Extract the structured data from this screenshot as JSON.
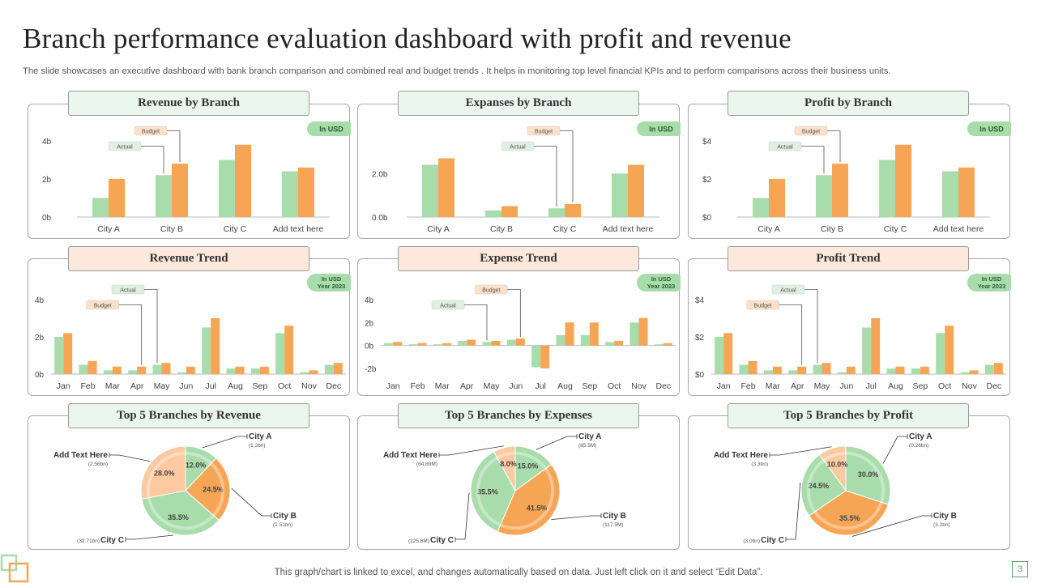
{
  "title": "Branch performance evaluation dashboard with profit and revenue",
  "subtitle": "The slide showcases an executive dashboard with bank branch comparison and combined real and budget trends . It helps in monitoring top level financial KPIs and to perform comparisons across their business units.",
  "footer": "This graph/chart is linked to excel,  and changes automatically based on data. Just left click on it and select “Edit Data”.",
  "page_number": "3",
  "colors": {
    "actual": "#a8dcab",
    "budget": "#f6a555",
    "green_title": "#eaf5ee",
    "orange_title": "#fde9dc",
    "badge": "#a8dcab"
  },
  "chart_data": [
    {
      "id": "rev_branch",
      "type": "bar",
      "title": "Revenue by Branch",
      "badge": [
        "In USD"
      ],
      "categories": [
        "City A",
        "City B",
        "City C",
        "Add text here"
      ],
      "series": [
        {
          "name": "Actual",
          "values": [
            1.0,
            2.2,
            3.0,
            2.4
          ]
        },
        {
          "name": "Budget",
          "values": [
            2.0,
            2.8,
            3.8,
            2.6
          ]
        }
      ],
      "ylim": [
        0,
        4
      ],
      "yticks": [
        0,
        2,
        4
      ],
      "ytick_labels": [
        "0b",
        "2b",
        "4b"
      ],
      "callouts": [
        {
          "text": "Budget",
          "series": 1,
          "index": 1
        },
        {
          "text": "Actual",
          "series": 0,
          "index": 1
        }
      ]
    },
    {
      "id": "exp_branch",
      "type": "bar",
      "title": "Expanses by Branch",
      "badge": [
        "In USD"
      ],
      "categories": [
        "City A",
        "City B",
        "City C",
        "Add text here"
      ],
      "series": [
        {
          "name": "Actual",
          "values": [
            2.4,
            0.3,
            0.4,
            2.0
          ]
        },
        {
          "name": "Budget",
          "values": [
            2.7,
            0.5,
            0.6,
            2.4
          ]
        }
      ],
      "ylim": [
        0,
        3.5
      ],
      "yticks": [
        0,
        2
      ],
      "ytick_labels": [
        "0.0b",
        "2.0b"
      ],
      "callouts": [
        {
          "text": "Budget",
          "series": 1,
          "index": 2
        },
        {
          "text": "Actual",
          "series": 0,
          "index": 2
        }
      ]
    },
    {
      "id": "profit_branch",
      "type": "bar",
      "title": "Profit  by Branch",
      "badge": [
        "In USD"
      ],
      "categories": [
        "City A",
        "City B",
        "City C",
        "Add text here"
      ],
      "series": [
        {
          "name": "Actual",
          "values": [
            1.0,
            2.2,
            3.0,
            2.4
          ]
        },
        {
          "name": "Budget",
          "values": [
            2.0,
            2.8,
            3.8,
            2.6
          ]
        }
      ],
      "ylim": [
        0,
        4
      ],
      "yticks": [
        0,
        2,
        4
      ],
      "ytick_labels": [
        "$0",
        "$2",
        "$4"
      ],
      "callouts": [
        {
          "text": "Budget",
          "series": 1,
          "index": 1
        },
        {
          "text": "Actual",
          "series": 0,
          "index": 1
        }
      ]
    },
    {
      "id": "rev_trend",
      "type": "bar",
      "title": "Revenue Trend",
      "badge": [
        "In USD",
        "Year 2023"
      ],
      "categories": [
        "Jan",
        "Feb",
        "Mar",
        "Apr",
        "May",
        "Jun",
        "Jul",
        "Aug",
        "Sep",
        "Oct",
        "Nov",
        "Dec"
      ],
      "series": [
        {
          "name": "Actual",
          "values": [
            2.0,
            0.5,
            0.2,
            0.2,
            0.5,
            0.1,
            2.5,
            0.3,
            0.3,
            2.2,
            0.1,
            0.5
          ]
        },
        {
          "name": "Budget",
          "values": [
            2.2,
            0.7,
            0.4,
            0.4,
            0.6,
            0.4,
            3.0,
            0.4,
            0.4,
            2.6,
            0.2,
            0.6
          ]
        }
      ],
      "ylim": [
        0,
        4
      ],
      "yticks": [
        0,
        2,
        4
      ],
      "ytick_labels": [
        "0b",
        "2b",
        "4b"
      ],
      "callouts": [
        {
          "text": "Actual",
          "series": 0,
          "index": 4
        },
        {
          "text": "Budget",
          "series": 1,
          "index": 3
        }
      ]
    },
    {
      "id": "exp_trend",
      "type": "bar",
      "title": "Expense Trend",
      "badge": [
        "In USD",
        "Year 2023"
      ],
      "categories": [
        "Jan",
        "Feb",
        "Mar",
        "Apr",
        "May",
        "Jun",
        "Jul",
        "Aug",
        "Sep",
        "Oct",
        "Nov",
        "Dec"
      ],
      "series": [
        {
          "name": "Actual",
          "values": [
            0.2,
            0.1,
            0.1,
            0.4,
            0.3,
            0.5,
            -1.9,
            0.9,
            0.9,
            0.3,
            2.0,
            0.1
          ]
        },
        {
          "name": "Budget",
          "values": [
            0.3,
            0.2,
            0.2,
            0.5,
            0.4,
            0.6,
            -2.0,
            2.0,
            2.0,
            0.4,
            2.4,
            0.2
          ]
        }
      ],
      "ylim": [
        -2.5,
        4
      ],
      "yticks": [
        -2,
        0,
        2,
        4
      ],
      "ytick_labels": [
        "-2b",
        "0b",
        "2b",
        "4b"
      ],
      "callouts": [
        {
          "text": "Budget",
          "series": 1,
          "index": 5
        },
        {
          "text": "Actual",
          "series": 0,
          "index": 4
        }
      ]
    },
    {
      "id": "profit_trend",
      "type": "bar",
      "title": "Profit  Trend",
      "badge": [
        "In USD",
        "Year 2023"
      ],
      "categories": [
        "Jan",
        "Feb",
        "Mar",
        "Apr",
        "May",
        "Jun",
        "Jul",
        "Aug",
        "Sep",
        "Oct",
        "Nov",
        "Dec"
      ],
      "series": [
        {
          "name": "Actual",
          "values": [
            2.0,
            0.5,
            0.2,
            0.2,
            0.5,
            0.1,
            2.5,
            0.3,
            0.3,
            2.2,
            0.1,
            0.5
          ]
        },
        {
          "name": "Budget",
          "values": [
            2.2,
            0.7,
            0.4,
            0.4,
            0.6,
            0.4,
            3.0,
            0.4,
            0.4,
            2.6,
            0.2,
            0.6
          ]
        }
      ],
      "ylim": [
        0,
        4
      ],
      "yticks": [
        0,
        2,
        4
      ],
      "ytick_labels": [
        "$0",
        "$2",
        "$4"
      ],
      "callouts": [
        {
          "text": "Actual",
          "series": 0,
          "index": 4
        },
        {
          "text": "Budget",
          "series": 1,
          "index": 3
        }
      ]
    },
    {
      "id": "top_rev",
      "type": "pie",
      "title": "Top 5 Branches by Revenue",
      "slices": [
        {
          "label": "City A",
          "value": 12.0,
          "pct": "12.0%",
          "sub": "(1.2bn)",
          "color": "#a8dcab"
        },
        {
          "label": "City B",
          "value": 24.5,
          "pct": "24.5%",
          "sub": "(2.51bn)",
          "color": "#f6a555"
        },
        {
          "label": "City C",
          "value": 35.5,
          "pct": "35.5%",
          "sub": "(32.71bn)",
          "color": "#a8dcab"
        },
        {
          "label": "Add Text Here",
          "value": 28.0,
          "pct": "28.0%",
          "sub": "(2.56bn)",
          "color": "#fcc9a0"
        }
      ]
    },
    {
      "id": "top_exp",
      "type": "pie",
      "title": "Top 5 Branches by Expenses",
      "slices": [
        {
          "label": "City A",
          "value": 15.0,
          "pct": "15.0%",
          "sub": "(85.5M)",
          "color": "#a8dcab"
        },
        {
          "label": "City B",
          "value": 41.5,
          "pct": "41.5%",
          "sub": "(117.5M)",
          "color": "#f6a555"
        },
        {
          "label": "City C",
          "value": 35.5,
          "pct": "35.5%",
          "sub": "(225.6M)",
          "color": "#a8dcab"
        },
        {
          "label": "Add Text Here",
          "value": 8.0,
          "pct": "8.0%",
          "sub": "(64.89M)",
          "color": "#fcc9a0"
        }
      ]
    },
    {
      "id": "top_profit",
      "type": "pie",
      "title": "Top 5 Branches by Profit",
      "slices": [
        {
          "label": "City A",
          "value": 30.0,
          "pct": "30.0%",
          "sub": "(0.26bn)",
          "color": "#a8dcab"
        },
        {
          "label": "City B",
          "value": 35.5,
          "pct": "35.5%",
          "sub": "(3.2bn)",
          "color": "#f6a555"
        },
        {
          "label": "City C",
          "value": 24.5,
          "pct": "24.5%",
          "sub": "(3.0bn)",
          "color": "#a8dcab"
        },
        {
          "label": "Add Text Here",
          "value": 10.0,
          "pct": "10.0%",
          "sub": "(3.3bn)",
          "color": "#fcc9a0"
        }
      ]
    }
  ]
}
